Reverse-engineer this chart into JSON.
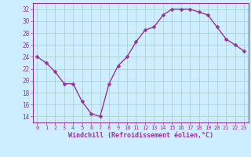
{
  "x": [
    0,
    1,
    2,
    3,
    4,
    5,
    6,
    7,
    8,
    9,
    10,
    11,
    12,
    13,
    14,
    15,
    16,
    17,
    18,
    19,
    20,
    21,
    22,
    23
  ],
  "y": [
    24,
    23,
    21.5,
    19.5,
    19.5,
    16.5,
    14.5,
    14,
    19.5,
    22.5,
    24,
    26.5,
    28.5,
    29,
    31,
    32,
    32,
    32,
    31.5,
    31,
    29,
    27,
    26,
    25
  ],
  "line_color": "#993399",
  "marker": "D",
  "marker_size": 2.5,
  "bg_color": "#cceeff",
  "grid_color": "#aacccc",
  "xlabel": "Windchill (Refroidissement éolien,°C)",
  "xlabel_color": "#993399",
  "tick_color": "#993399",
  "ylim": [
    13,
    33
  ],
  "xlim": [
    -0.5,
    23.5
  ],
  "yticks": [
    14,
    16,
    18,
    20,
    22,
    24,
    26,
    28,
    30,
    32
  ],
  "xticks": [
    0,
    1,
    2,
    3,
    4,
    5,
    6,
    7,
    8,
    9,
    10,
    11,
    12,
    13,
    14,
    15,
    16,
    17,
    18,
    19,
    20,
    21,
    22,
    23
  ],
  "xtick_labels": [
    "0",
    "1",
    "2",
    "3",
    "4",
    "5",
    "6",
    "7",
    "8",
    "9",
    "10",
    "11",
    "12",
    "13",
    "14",
    "15",
    "16",
    "17",
    "18",
    "19",
    "20",
    "21",
    "22",
    "23"
  ],
  "ytick_labels": [
    "14",
    "16",
    "18",
    "20",
    "22",
    "24",
    "26",
    "28",
    "30",
    "32"
  ],
  "spine_color": "#993399",
  "linewidth": 1.0
}
